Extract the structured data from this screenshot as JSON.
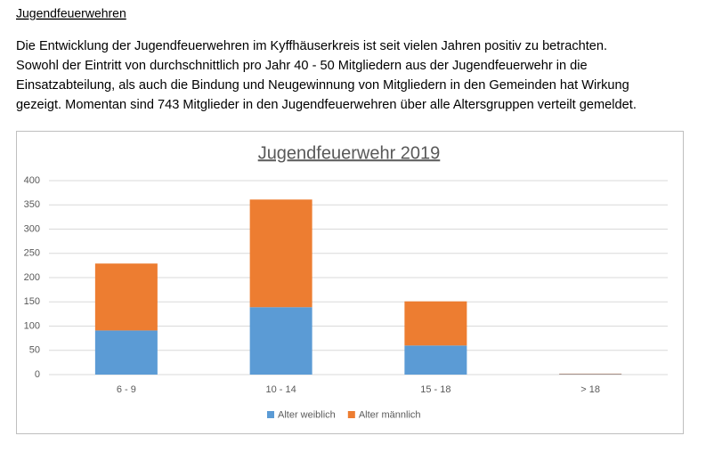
{
  "header": {
    "title": "Jugendfeuerwehren"
  },
  "paragraph": [
    "Die Entwicklung der Jugendfeuerwehren im Kyffhäuserkreis ist seit vielen Jahren positiv zu betrachten.",
    "Sowohl der Eintritt von durchschnittlich pro Jahr 40 - 50 Mitgliedern aus der Jugendfeuerwehr in die",
    "Einsatzabteilung, als auch die Bindung und Neugewinnung von Mitgliedern in den Gemeinden hat Wirkung",
    "gezeigt. Momentan sind 743 Mitglieder in den Jugendfeuerwehren über alle Altersgruppen verteilt gemeldet."
  ],
  "chart_data": {
    "type": "stacked-bar",
    "title": "Jugendfeuerwehr 2019",
    "categories": [
      "6 - 9",
      "10 - 14",
      "15 - 18",
      "> 18"
    ],
    "series": [
      {
        "name": "Alter weiblich",
        "color": "#5b9bd5",
        "values": [
          91,
          139,
          60,
          1
        ]
      },
      {
        "name": "Alter männlich",
        "color": "#ed7d31",
        "values": [
          138,
          222,
          91,
          1
        ]
      }
    ],
    "ylim": [
      0,
      400
    ],
    "yticks": [
      0,
      50,
      100,
      150,
      200,
      250,
      300,
      350,
      400
    ],
    "grid": true,
    "legend": "bottom"
  }
}
